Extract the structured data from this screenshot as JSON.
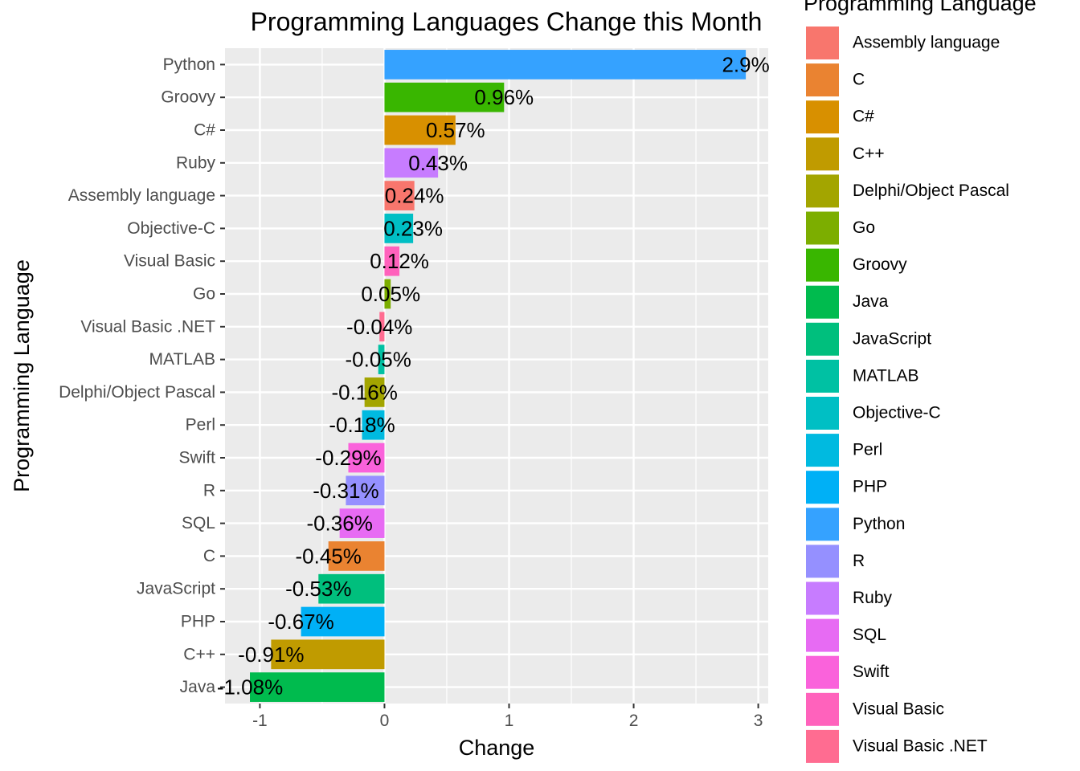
{
  "chart_data": {
    "type": "bar",
    "orientation": "horizontal",
    "title": "Programming Languages Change this Month",
    "xlabel": "Change",
    "ylabel": "Programming Language",
    "xlim": [
      -1.28,
      3.08
    ],
    "xticks": [
      -1,
      0,
      1,
      2,
      3
    ],
    "xtick_labels": [
      "-1",
      "0",
      "1",
      "2",
      "3"
    ],
    "grid": true,
    "legend": {
      "title": "Programming Language",
      "placement": "right",
      "entries": [
        {
          "name": "Assembly language",
          "color": "#F8766D"
        },
        {
          "name": "C",
          "color": "#EA8331"
        },
        {
          "name": "C#",
          "color": "#D89000"
        },
        {
          "name": "C++",
          "color": "#C09B00"
        },
        {
          "name": "Delphi/Object Pascal",
          "color": "#A3A500"
        },
        {
          "name": "Go",
          "color": "#7CAE00"
        },
        {
          "name": "Groovy",
          "color": "#39B600"
        },
        {
          "name": "Java",
          "color": "#00BB4E"
        },
        {
          "name": "JavaScript",
          "color": "#00BF7D"
        },
        {
          "name": "MATLAB",
          "color": "#00C1A3"
        },
        {
          "name": "Objective-C",
          "color": "#00BFC4"
        },
        {
          "name": "Perl",
          "color": "#00BAE0"
        },
        {
          "name": "PHP",
          "color": "#00B0F6"
        },
        {
          "name": "Python",
          "color": "#35A2FF"
        },
        {
          "name": "R",
          "color": "#9590FF"
        },
        {
          "name": "Ruby",
          "color": "#C77CFF"
        },
        {
          "name": "SQL",
          "color": "#E76BF3"
        },
        {
          "name": "Swift",
          "color": "#FA62DB"
        },
        {
          "name": "Visual Basic",
          "color": "#FF62BC"
        },
        {
          "name": "Visual Basic .NET",
          "color": "#FF6C91"
        }
      ]
    },
    "bars": [
      {
        "category": "Python",
        "value": 2.9,
        "label": "2.9%"
      },
      {
        "category": "Groovy",
        "value": 0.96,
        "label": "0.96%"
      },
      {
        "category": "C#",
        "value": 0.57,
        "label": "0.57%"
      },
      {
        "category": "Ruby",
        "value": 0.43,
        "label": "0.43%"
      },
      {
        "category": "Assembly language",
        "value": 0.24,
        "label": "0.24%"
      },
      {
        "category": "Objective-C",
        "value": 0.23,
        "label": "0.23%"
      },
      {
        "category": "Visual Basic",
        "value": 0.12,
        "label": "0.12%"
      },
      {
        "category": "Go",
        "value": 0.05,
        "label": "0.05%"
      },
      {
        "category": "Visual Basic .NET",
        "value": -0.04,
        "label": "-0.04%"
      },
      {
        "category": "MATLAB",
        "value": -0.05,
        "label": "-0.05%"
      },
      {
        "category": "Delphi/Object Pascal",
        "value": -0.16,
        "label": "-0.16%"
      },
      {
        "category": "Perl",
        "value": -0.18,
        "label": "-0.18%"
      },
      {
        "category": "Swift",
        "value": -0.29,
        "label": "-0.29%"
      },
      {
        "category": "R",
        "value": -0.31,
        "label": "-0.31%"
      },
      {
        "category": "SQL",
        "value": -0.36,
        "label": "-0.36%"
      },
      {
        "category": "C",
        "value": -0.45,
        "label": "-0.45%"
      },
      {
        "category": "JavaScript",
        "value": -0.53,
        "label": "-0.53%"
      },
      {
        "category": "PHP",
        "value": -0.67,
        "label": "-0.67%"
      },
      {
        "category": "C++",
        "value": -0.91,
        "label": "-0.91%"
      },
      {
        "category": "Java",
        "value": -1.08,
        "label": "-1.08%"
      }
    ]
  }
}
